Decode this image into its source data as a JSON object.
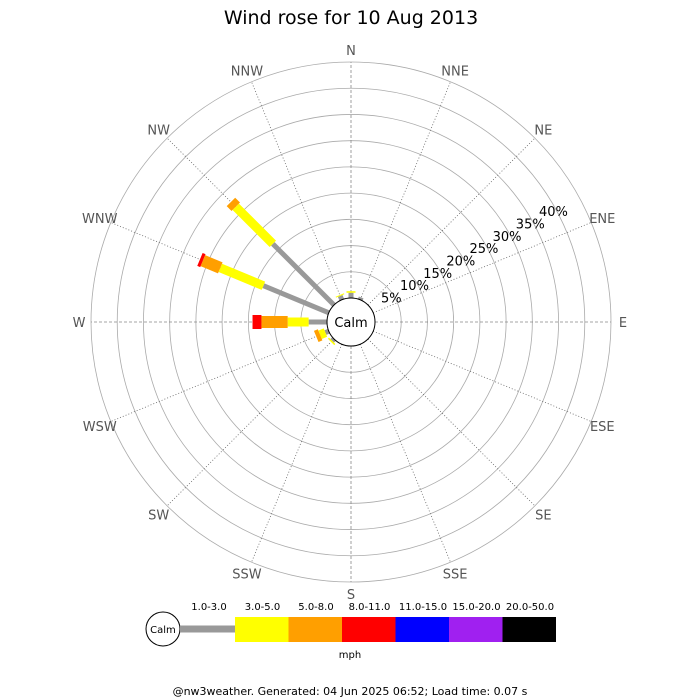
{
  "chart_data": {
    "type": "wind-rose",
    "title": "Wind rose for 10 Aug 2013",
    "directions": [
      "N",
      "NNE",
      "NE",
      "ENE",
      "E",
      "ESE",
      "SE",
      "SSE",
      "S",
      "SSW",
      "SW",
      "WSW",
      "W",
      "WNW",
      "NW",
      "NNW"
    ],
    "ring_labels": [
      "5%",
      "10%",
      "15%",
      "20%",
      "25%",
      "30%",
      "35%",
      "40%"
    ],
    "rmax": 45,
    "calm_label": "Calm",
    "units_label": "mph",
    "speed_bins": [
      {
        "label": "1.0-3.0",
        "color": "#999999"
      },
      {
        "label": "3.0-5.0",
        "color": "#ffff00"
      },
      {
        "label": "5.0-8.0",
        "color": "#ff9f00"
      },
      {
        "label": "8.0-11.0",
        "color": "#ff0000"
      },
      {
        "label": "11.0-15.0",
        "color": "#0000ff"
      },
      {
        "label": "15.0-20.0",
        "color": "#a020f0"
      },
      {
        "label": "20.0-50.0",
        "color": "#000000"
      }
    ],
    "series_cumulative": {
      "N": [
        1.0,
        1.3,
        0,
        0,
        0,
        0,
        0
      ],
      "NNE": [
        0.5,
        0,
        0,
        0,
        0,
        0,
        0
      ],
      "NNW": [
        0.8,
        1.0,
        0,
        0,
        0,
        0,
        0
      ],
      "NW": [
        16.5,
        26.5,
        27.8,
        0,
        0,
        0,
        0
      ],
      "WNW": [
        13.5,
        22.4,
        26.0,
        26.6,
        0,
        0,
        0
      ],
      "W": [
        3.5,
        7.5,
        12.5,
        14.2,
        0,
        0,
        0
      ],
      "WSW": [
        0.7,
        1.8,
        2.6,
        0,
        0,
        0,
        0
      ],
      "SW": [
        0.5,
        0.8,
        0,
        0,
        0,
        0,
        0
      ]
    }
  },
  "footer": "@nw3weather. Generated: 04 Jun 2025 06:52; Load time: 0.07 s"
}
